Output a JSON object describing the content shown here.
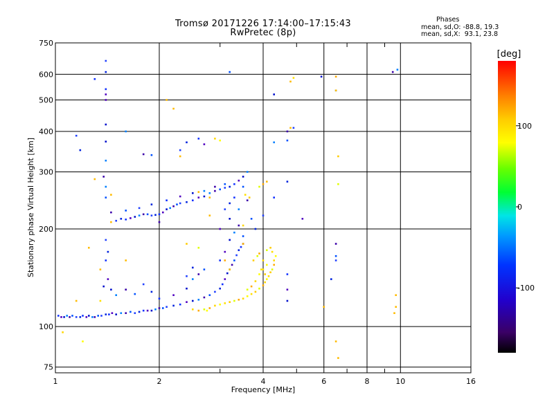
{
  "header": {
    "title_line1": "Tromsø 20171226 17:14:00–17:15:43",
    "title_line2": "RwPretec (8p)"
  },
  "phases": {
    "title": "Phases",
    "o_line": "mean, sd,O: -88.8, 19.3",
    "x_line": "mean, sd,X:  93.1, 23.8"
  },
  "colorbar": {
    "label": "[deg]",
    "range": [
      -180,
      180
    ],
    "ticks": [
      {
        "value": 100,
        "label": "100"
      },
      {
        "value": 0,
        "label": "0"
      },
      {
        "value": -100,
        "label": "-100"
      }
    ]
  },
  "chart_data": {
    "type": "scatter",
    "title": "Tromsø 20171226 17:14:00–17:15:43",
    "subtitle": "RwPretec (8p)",
    "xlabel": "Frequency [MHz]",
    "ylabel": "Stationary phase Virtual Height [km]",
    "xscale": "log",
    "yscale": "log",
    "xlim": [
      1,
      16
    ],
    "ylim": [
      72,
      750
    ],
    "grid": true,
    "x_ticks": [
      {
        "value": 1,
        "label": "1"
      },
      {
        "value": 2,
        "label": "2"
      },
      {
        "value": 4,
        "label": "4"
      },
      {
        "value": 6,
        "label": "6"
      },
      {
        "value": 8,
        "label": "8"
      },
      {
        "value": 10,
        "label": "10"
      },
      {
        "value": 16,
        "label": "16"
      }
    ],
    "x_minor_ticks": [
      3,
      5,
      7,
      9
    ],
    "y_ticks": [
      {
        "value": 75,
        "label": "75"
      },
      {
        "value": 100,
        "label": "100"
      },
      {
        "value": 200,
        "label": "200"
      },
      {
        "value": 300,
        "label": "300"
      },
      {
        "value": 400,
        "label": "400"
      },
      {
        "value": 500,
        "label": "500"
      },
      {
        "value": 600,
        "label": "600"
      },
      {
        "value": 750,
        "label": "750"
      }
    ],
    "series": [
      {
        "name": "O-mode trace (blue)",
        "points": [
          [
            1.02,
            108
          ],
          [
            1.04,
            107
          ],
          [
            1.06,
            107
          ],
          [
            1.08,
            108
          ],
          [
            1.1,
            107
          ],
          [
            1.12,
            108
          ],
          [
            1.15,
            107
          ],
          [
            1.18,
            107
          ],
          [
            1.2,
            108
          ],
          [
            1.23,
            107
          ],
          [
            1.25,
            108
          ],
          [
            1.28,
            107
          ],
          [
            1.3,
            107
          ],
          [
            1.33,
            108
          ],
          [
            1.36,
            108
          ],
          [
            1.4,
            109
          ],
          [
            1.43,
            109
          ],
          [
            1.46,
            110
          ],
          [
            1.5,
            109
          ],
          [
            1.55,
            110
          ],
          [
            1.6,
            110
          ],
          [
            1.65,
            111
          ],
          [
            1.7,
            110
          ],
          [
            1.75,
            111
          ],
          [
            1.8,
            112
          ],
          [
            1.85,
            112
          ],
          [
            1.9,
            112
          ],
          [
            1.95,
            113
          ],
          [
            2.0,
            114
          ],
          [
            2.05,
            114
          ],
          [
            2.1,
            115
          ],
          [
            2.2,
            116
          ],
          [
            2.3,
            117
          ],
          [
            2.4,
            119
          ],
          [
            2.5,
            120
          ],
          [
            2.6,
            121
          ],
          [
            2.7,
            123
          ],
          [
            2.8,
            125
          ],
          [
            2.9,
            128
          ],
          [
            3.0,
            131
          ],
          [
            3.05,
            135
          ],
          [
            3.1,
            140
          ],
          [
            3.15,
            146
          ],
          [
            3.2,
            150
          ],
          [
            3.25,
            155
          ],
          [
            3.3,
            160
          ],
          [
            3.35,
            166
          ],
          [
            3.4,
            172
          ],
          [
            3.45,
            176
          ],
          [
            3.5,
            180
          ],
          [
            1.45,
            130
          ],
          [
            1.5,
            125
          ],
          [
            1.6,
            130
          ],
          [
            1.7,
            126
          ],
          [
            1.8,
            135
          ],
          [
            1.9,
            128
          ],
          [
            2.0,
            122
          ],
          [
            2.2,
            125
          ],
          [
            2.4,
            131
          ],
          [
            2.5,
            140
          ],
          [
            2.6,
            145
          ],
          [
            2.7,
            150
          ],
          [
            2.4,
            143
          ],
          [
            2.5,
            152
          ],
          [
            3.0,
            160
          ],
          [
            3.1,
            170
          ],
          [
            3.2,
            185
          ],
          [
            3.3,
            195
          ],
          [
            3.4,
            205
          ],
          [
            3.5,
            190
          ],
          [
            3.1,
            230
          ],
          [
            3.2,
            240
          ],
          [
            3.3,
            250
          ],
          [
            3.0,
            200
          ],
          [
            3.2,
            215
          ],
          [
            3.4,
            230
          ],
          [
            3.6,
            245
          ],
          [
            3.5,
            270
          ],
          [
            1.5,
            212
          ],
          [
            1.55,
            215
          ],
          [
            1.6,
            214
          ],
          [
            1.65,
            216
          ],
          [
            1.7,
            218
          ],
          [
            1.75,
            220
          ],
          [
            1.8,
            222
          ],
          [
            1.85,
            222
          ],
          [
            1.9,
            220
          ],
          [
            1.95,
            221
          ],
          [
            2.0,
            222
          ],
          [
            2.05,
            225
          ],
          [
            2.1,
            230
          ],
          [
            2.15,
            232
          ],
          [
            2.2,
            235
          ],
          [
            2.25,
            238
          ],
          [
            2.3,
            240
          ],
          [
            2.4,
            242
          ],
          [
            2.5,
            245
          ],
          [
            2.6,
            250
          ],
          [
            2.7,
            252
          ],
          [
            2.8,
            258
          ],
          [
            2.9,
            262
          ],
          [
            3.0,
            265
          ],
          [
            3.1,
            268
          ],
          [
            3.2,
            270
          ],
          [
            3.3,
            275
          ],
          [
            3.4,
            282
          ],
          [
            3.5,
            290
          ],
          [
            3.6,
            300
          ],
          [
            1.45,
            225
          ],
          [
            1.6,
            228
          ],
          [
            1.75,
            232
          ],
          [
            1.9,
            238
          ],
          [
            2.1,
            245
          ],
          [
            2.3,
            252
          ],
          [
            2.5,
            258
          ],
          [
            2.7,
            262
          ],
          [
            2.9,
            270
          ],
          [
            3.1,
            275
          ],
          [
            1.15,
            388
          ],
          [
            1.18,
            350
          ],
          [
            1.3,
            580
          ],
          [
            1.4,
            520
          ],
          [
            1.4,
            372
          ],
          [
            1.4,
            325
          ],
          [
            1.38,
            290
          ],
          [
            1.4,
            250
          ],
          [
            1.4,
            185
          ],
          [
            1.42,
            170
          ],
          [
            1.4,
            160
          ],
          [
            1.42,
            140
          ],
          [
            1.38,
            133
          ],
          [
            1.6,
            400
          ],
          [
            1.8,
            340
          ],
          [
            1.9,
            338
          ],
          [
            2.3,
            350
          ],
          [
            2.4,
            370
          ],
          [
            2.6,
            380
          ],
          [
            2.7,
            365
          ],
          [
            4.3,
            520
          ],
          [
            4.3,
            370
          ],
          [
            4.7,
            400
          ],
          [
            4.7,
            375
          ],
          [
            4.9,
            410
          ],
          [
            4.7,
            280
          ],
          [
            4.3,
            250
          ],
          [
            5.2,
            215
          ],
          [
            5.9,
            590
          ],
          [
            6.5,
            535
          ],
          [
            6.5,
            180
          ],
          [
            6.5,
            165
          ],
          [
            6.5,
            160
          ],
          [
            6.3,
            140
          ],
          [
            4.7,
            145
          ],
          [
            4.7,
            130
          ],
          [
            4.7,
            120
          ],
          [
            9.8,
            620
          ],
          [
            9.5,
            610
          ],
          [
            3.2,
            610
          ],
          [
            1.4,
            660
          ],
          [
            1.4,
            610
          ],
          [
            1.4,
            540
          ],
          [
            1.4,
            500
          ],
          [
            1.4,
            420
          ],
          [
            1.4,
            270
          ],
          [
            2.0,
            210
          ],
          [
            3.7,
            215
          ],
          [
            4.0,
            220
          ],
          [
            3.8,
            200
          ]
        ]
      },
      {
        "name": "X-mode trace (yellow/orange)",
        "points": [
          [
            2.7,
            113
          ],
          [
            2.8,
            114
          ],
          [
            2.9,
            116
          ],
          [
            3.0,
            117
          ],
          [
            3.1,
            118
          ],
          [
            3.2,
            119
          ],
          [
            3.3,
            120
          ],
          [
            3.4,
            121
          ],
          [
            3.5,
            122
          ],
          [
            3.6,
            124
          ],
          [
            3.7,
            126
          ],
          [
            3.8,
            128
          ],
          [
            3.9,
            131
          ],
          [
            4.0,
            134
          ],
          [
            4.05,
            137
          ],
          [
            4.1,
            140
          ],
          [
            4.15,
            143
          ],
          [
            4.2,
            147
          ],
          [
            4.25,
            150
          ],
          [
            4.3,
            155
          ],
          [
            4.3,
            160
          ],
          [
            4.35,
            165
          ],
          [
            4.25,
            170
          ],
          [
            4.2,
            175
          ],
          [
            4.1,
            172
          ],
          [
            3.9,
            168
          ],
          [
            4.0,
            160
          ],
          [
            4.1,
            155
          ],
          [
            3.95,
            150
          ],
          [
            4.05,
            145
          ],
          [
            3.6,
            130
          ],
          [
            3.7,
            133
          ],
          [
            3.8,
            138
          ],
          [
            3.9,
            145
          ],
          [
            4.0,
            150
          ],
          [
            3.75,
            160
          ],
          [
            3.85,
            165
          ],
          [
            2.6,
            112
          ],
          [
            2.5,
            113
          ],
          [
            2.75,
            112
          ],
          [
            3.55,
            255
          ],
          [
            3.65,
            250
          ],
          [
            3.9,
            270
          ],
          [
            4.0,
            275
          ],
          [
            2.9,
            380
          ],
          [
            3.0,
            375
          ],
          [
            4.9,
            585
          ],
          [
            6.6,
            335
          ],
          [
            6.6,
            275
          ],
          [
            6.5,
            590
          ],
          [
            1.05,
            96
          ],
          [
            1.2,
            90
          ],
          [
            1.35,
            120
          ],
          [
            2.4,
            180
          ],
          [
            2.6,
            175
          ],
          [
            3.1,
            160
          ],
          [
            3.5,
            205
          ]
        ]
      },
      {
        "name": "Sparse red/orange/green echoes",
        "points": [
          [
            1.3,
            285
          ],
          [
            1.45,
            255
          ],
          [
            1.45,
            210
          ],
          [
            1.35,
            150
          ],
          [
            1.25,
            175
          ],
          [
            2.1,
            500
          ],
          [
            2.3,
            335
          ],
          [
            2.6,
            260
          ],
          [
            2.8,
            250
          ],
          [
            4.1,
            280
          ],
          [
            4.8,
            410
          ],
          [
            4.8,
            570
          ],
          [
            6.0,
            115
          ],
          [
            6.5,
            535
          ],
          [
            9.7,
            125
          ],
          [
            9.7,
            115
          ],
          [
            9.6,
            110
          ],
          [
            6.5,
            90
          ],
          [
            6.6,
            80
          ],
          [
            3.2,
            150
          ],
          [
            2.8,
            220
          ],
          [
            3.5,
            180
          ],
          [
            2.2,
            470
          ],
          [
            1.6,
            160
          ],
          [
            1.15,
            120
          ]
        ]
      }
    ]
  }
}
